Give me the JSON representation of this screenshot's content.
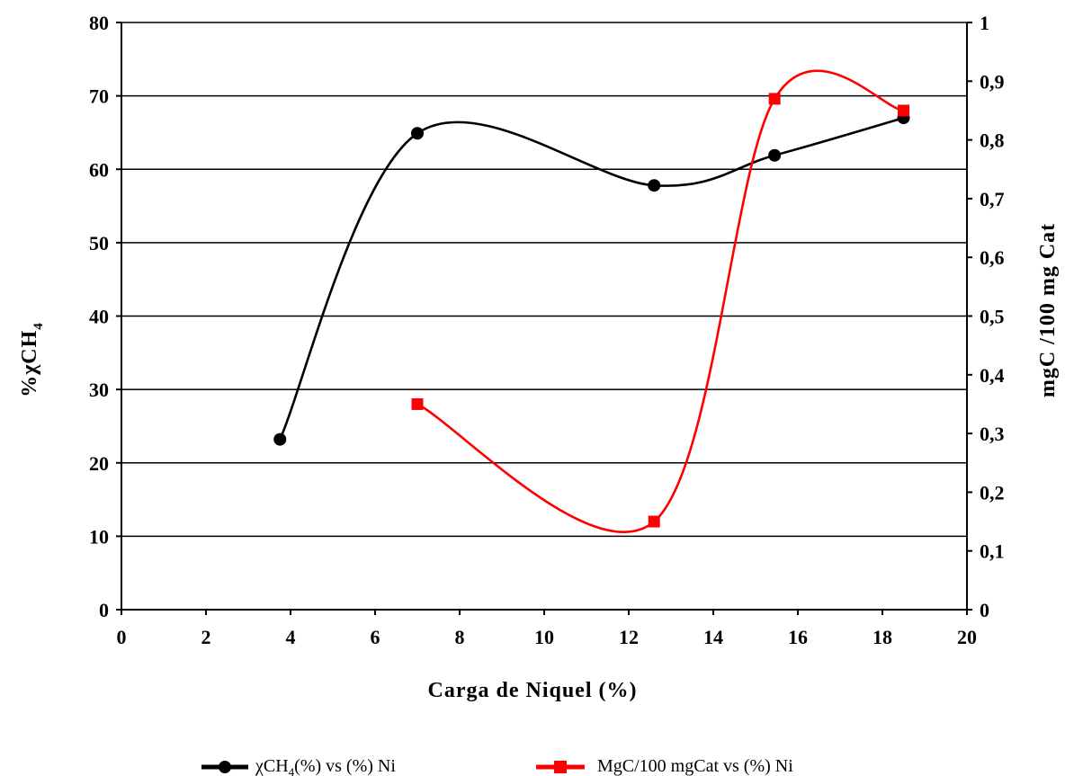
{
  "chart_data": {
    "type": "line",
    "xlabel": "Carga de Niquel (%)",
    "ylabel_left": "%χCH",
    "ylabel_left_subscript": "4",
    "ylabel_right": "mgC /100 mg Cat",
    "xlim": [
      0,
      20
    ],
    "ylim_left": [
      0,
      80
    ],
    "ylim_right": [
      0,
      1
    ],
    "x_ticks": [
      0,
      2,
      4,
      6,
      8,
      10,
      12,
      14,
      16,
      18,
      20
    ],
    "x_tick_labels": [
      "0",
      "2",
      "4",
      "6",
      "8",
      "10",
      "12",
      "14",
      "16",
      "18",
      "20"
    ],
    "y_left_ticks": [
      0,
      10,
      20,
      30,
      40,
      50,
      60,
      70,
      80
    ],
    "y_left_tick_labels": [
      "0",
      "10",
      "20",
      "30",
      "40",
      "50",
      "60",
      "70",
      "80"
    ],
    "y_right_ticks": [
      0,
      0.1,
      0.2,
      0.3,
      0.4,
      0.5,
      0.6,
      0.7,
      0.8,
      0.9,
      1
    ],
    "y_right_tick_labels": [
      "0",
      "0,1",
      "0,2",
      "0,3",
      "0,4",
      "0,5",
      "0,6",
      "0,7",
      "0,8",
      "0,9",
      "1"
    ],
    "grid": "horizontal",
    "legend_position": "bottom",
    "series": [
      {
        "name_prefix": "χCH",
        "name_subscript": "4",
        "name_suffix": "(%) vs (%) Ni",
        "axis": "left",
        "marker": "circle",
        "color": "#000000",
        "x": [
          3.75,
          7.0,
          12.6,
          15.45,
          18.5
        ],
        "y": [
          23.2,
          64.9,
          57.8,
          61.9,
          67.0
        ]
      },
      {
        "name": "MgC/100 mgCat vs (%) Ni",
        "axis": "right",
        "marker": "square",
        "color": "#ff0000",
        "x": [
          7.0,
          12.6,
          15.45,
          18.5
        ],
        "y": [
          0.35,
          0.15,
          0.87,
          0.85
        ]
      }
    ]
  }
}
